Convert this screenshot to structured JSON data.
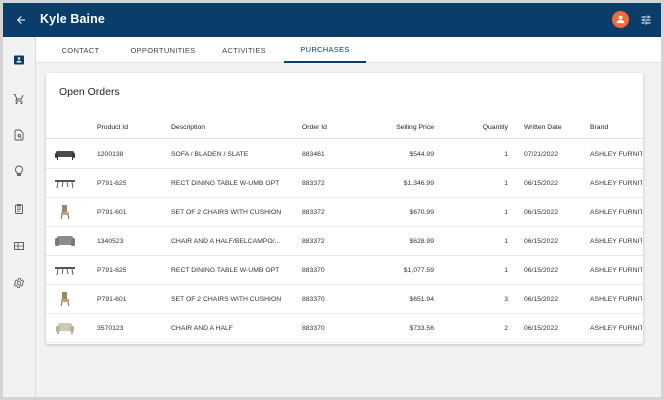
{
  "app": {
    "title": "Kyle Baine",
    "colors": {
      "header": "#0b3d6b",
      "accent": "#f26b3a",
      "card": "#ffffff"
    },
    "header_icons": {
      "back": "arrow-left-icon",
      "avatar": "user-avatar-icon",
      "filter": "tune-icon"
    }
  },
  "sidebar": {
    "items": [
      {
        "name": "contact",
        "icon": "contact-card-icon",
        "active": true
      },
      {
        "name": "cart",
        "icon": "cart-icon",
        "active": false
      },
      {
        "name": "search-doc",
        "icon": "document-search-icon",
        "active": false
      },
      {
        "name": "ideas",
        "icon": "lightbulb-icon",
        "active": false
      },
      {
        "name": "clipboard",
        "icon": "clipboard-icon",
        "active": false
      },
      {
        "name": "gallery",
        "icon": "gallery-icon",
        "active": false
      },
      {
        "name": "settings",
        "icon": "gear-icon",
        "active": false
      }
    ]
  },
  "tabs": [
    {
      "label": "CONTACT",
      "active": false
    },
    {
      "label": "OPPORTUNITIES",
      "active": false
    },
    {
      "label": "ACTIVITIES",
      "active": false
    },
    {
      "label": "PURCHASES",
      "active": true
    }
  ],
  "orders": {
    "title": "Open Orders",
    "columns": [
      "Product Id",
      "Description",
      "Order Id",
      "Selling Price",
      "Quantity",
      "Written Date",
      "Brand"
    ],
    "rows": [
      {
        "thumb": "sofa-thumbnail",
        "product_id": "1200138",
        "description": "SOFA / BLADEN / SLATE",
        "order_id": "883461",
        "price": "$544.99",
        "qty": "1",
        "date": "07/21/2022",
        "brand": "ASHLEY FURNIT..."
      },
      {
        "thumb": "dining-table-thumbnail",
        "product_id": "P791-625",
        "description": "RECT DINING TABLE W-UMB OPT",
        "order_id": "883372",
        "price": "$1,346.99",
        "qty": "1",
        "date": "06/15/2022",
        "brand": "ASHLEY FURNIT..."
      },
      {
        "thumb": "chair-thumbnail",
        "product_id": "P791-601",
        "description": "SET OF 2 CHAIRS WITH CUSHION",
        "order_id": "883372",
        "price": "$670.99",
        "qty": "1",
        "date": "06/15/2022",
        "brand": "ASHLEY FURNIT..."
      },
      {
        "thumb": "armchair-thumbnail",
        "product_id": "1340523",
        "description": "CHAIR AND A HALF/BELCAMPO/...",
        "order_id": "883372",
        "price": "$628.99",
        "qty": "1",
        "date": "06/15/2022",
        "brand": "ASHLEY FURNIT..."
      },
      {
        "thumb": "dining-table-thumbnail",
        "product_id": "P791-625",
        "description": "RECT DINING TABLE W-UMB OPT",
        "order_id": "883370",
        "price": "$1,077.59",
        "qty": "1",
        "date": "06/15/2022",
        "brand": "ASHLEY FURNIT..."
      },
      {
        "thumb": "chair-thumbnail",
        "product_id": "P791-601",
        "description": "SET OF 2 CHAIRS WITH CUSHION",
        "order_id": "883370",
        "price": "$651.94",
        "qty": "3",
        "date": "06/15/2022",
        "brand": "ASHLEY FURNIT..."
      },
      {
        "thumb": "armchair-light-thumbnail",
        "product_id": "3570123",
        "description": "CHAIR AND A HALF",
        "order_id": "883370",
        "price": "$733.56",
        "qty": "2",
        "date": "06/15/2022",
        "brand": "ASHLEY FURNIT..."
      }
    ]
  }
}
